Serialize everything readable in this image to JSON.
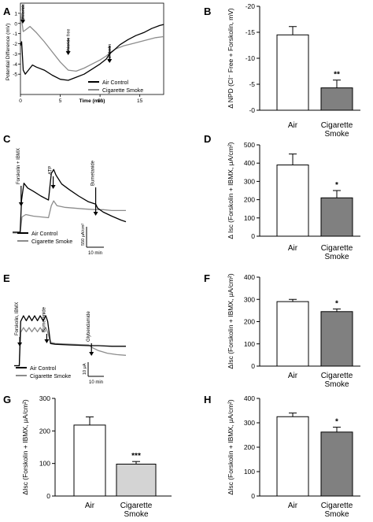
{
  "figure": {
    "label_fill": "#000000"
  },
  "chart_data": [
    {
      "panel": "A",
      "type": "line",
      "xlabel": "Time (min)",
      "ylabel": "Potential Difference (mV)",
      "xlim": [
        0,
        18
      ],
      "ylim": [
        -7,
        2
      ],
      "x_ticks": [
        0,
        5,
        10,
        15
      ],
      "y_ticks": [
        1,
        0,
        -1,
        -2,
        -3,
        -4,
        -5
      ],
      "annotations": [
        {
          "text": "Amiloride",
          "x": 0.3
        },
        {
          "text": "Chloride free",
          "x": 6.0
        },
        {
          "text": "Forskolin",
          "x": 11.2
        }
      ],
      "series": [
        {
          "name": "Air Control",
          "color": "#000000",
          "x": [
            0,
            0.15,
            0.35,
            0.6,
            1,
            1.5,
            2,
            3,
            4,
            5,
            6,
            7,
            8,
            9,
            10,
            10.8,
            11.2,
            11.8,
            12.5,
            13.5,
            14.5,
            15.5,
            16.5,
            17.5,
            18
          ],
          "y": [
            -2.2,
            -1.8,
            -4.6,
            -5.0,
            -4.6,
            -4.1,
            -4.3,
            -4.6,
            -5.1,
            -5.5,
            -5.6,
            -5.3,
            -5.0,
            -4.5,
            -4.0,
            -3.5,
            -3.0,
            -2.6,
            -2.1,
            -1.6,
            -1.2,
            -0.9,
            -0.5,
            -0.2,
            -0.1
          ]
        },
        {
          "name": "Cigarette Smoke",
          "color": "#8c8c8c",
          "x": [
            0,
            0.15,
            0.35,
            0.7,
            1.2,
            2,
            3,
            4,
            5,
            6,
            7,
            8,
            9,
            10,
            10.8,
            11.2,
            12,
            13,
            14,
            15,
            16,
            17,
            18
          ],
          "y": [
            1.2,
            0.4,
            -0.8,
            -0.6,
            -0.3,
            -0.9,
            -1.8,
            -2.8,
            -3.8,
            -4.6,
            -4.7,
            -4.4,
            -4.0,
            -3.6,
            -3.2,
            -2.9,
            -2.5,
            -2.2,
            -2.0,
            -1.8,
            -1.6,
            -1.4,
            -1.3
          ]
        }
      ]
    },
    {
      "panel": "B",
      "type": "bar",
      "ylabel": "Δ NPD (Cl⁻ Free + Forskolin, mV)",
      "ylim": [
        0,
        -20
      ],
      "y_ticks": [
        0,
        -5,
        -10,
        -15,
        -20
      ],
      "y_tick_labels": [
        "-0",
        "-5",
        "-10",
        "-15",
        "-20"
      ],
      "categories": [
        "Air",
        "Cigarette Smoke"
      ],
      "category_lines": [
        [
          "Air"
        ],
        [
          "Cigarette",
          "Smoke"
        ]
      ],
      "values": [
        -14.5,
        -4.3
      ],
      "errors": [
        1.6,
        1.5
      ],
      "colors": [
        "#ffffff",
        "#808080"
      ],
      "significance": [
        "",
        "**"
      ]
    },
    {
      "panel": "C",
      "type": "line",
      "annotations": [
        {
          "text": "Forskolin + IBMX",
          "x": 0.9
        },
        {
          "text": "ATP",
          "x": 4.3
        },
        {
          "text": "Bumetanide",
          "x": 8.8
        }
      ],
      "scale_bar": {
        "y_label": "550 μA/cm²",
        "x_label": "10 min"
      },
      "xlim": [
        0,
        12
      ],
      "ylim": [
        0,
        10
      ],
      "series": [
        {
          "name": "Air Control",
          "color": "#000000",
          "x": [
            0,
            0.8,
            0.95,
            1.2,
            1.6,
            2.2,
            3,
            3.8,
            4.1,
            4.35,
            4.6,
            5.2,
            6,
            7,
            8,
            8.8,
            9.0,
            9.6,
            10.5,
            11.5,
            12
          ],
          "y": [
            0.5,
            0.5,
            4.5,
            6.6,
            6.0,
            5.6,
            5.0,
            4.5,
            7.8,
            8.3,
            7.6,
            6.5,
            5.8,
            5.0,
            4.3,
            4.0,
            3.5,
            3.0,
            2.5,
            2.0,
            1.8
          ]
        },
        {
          "name": "Cigarette Smoke",
          "color": "#8c8c8c",
          "x": [
            0,
            0.8,
            1.0,
            1.4,
            2.2,
            3,
            3.8,
            4.1,
            4.35,
            4.7,
            5.5,
            6.5,
            7.5,
            8.8,
            9.6,
            10.5,
            11.5,
            12
          ],
          "y": [
            0.4,
            0.4,
            2.4,
            2.7,
            2.5,
            2.4,
            2.3,
            3.8,
            4.4,
            3.8,
            3.6,
            3.5,
            3.4,
            3.3,
            3.3,
            3.2,
            3.2,
            3.2
          ]
        }
      ]
    },
    {
      "panel": "D",
      "type": "bar",
      "ylabel": "Δ Isc (Forskolin + IBMX, μA/cm²)",
      "ylim": [
        0,
        500
      ],
      "y_ticks": [
        0,
        100,
        200,
        300,
        400,
        500
      ],
      "categories": [
        "Air",
        "Cigarette Smoke"
      ],
      "category_lines": [
        [
          "Air"
        ],
        [
          "Cigarette",
          "Smoke"
        ]
      ],
      "values": [
        390,
        210
      ],
      "errors": [
        60,
        40
      ],
      "colors": [
        "#ffffff",
        "#808080"
      ],
      "significance": [
        "",
        "*"
      ]
    },
    {
      "panel": "E",
      "type": "line",
      "annotations": [
        {
          "text": "Forskolin, IBMX",
          "x": 0.6
        },
        {
          "text": "Bumetanide",
          "x": 3.5
        },
        {
          "text": "Glybendamide",
          "x": 8.3
        }
      ],
      "scale_bar": {
        "y_label": "10 μA",
        "x_label": "10 min"
      },
      "xlim": [
        0,
        12
      ],
      "ylim": [
        0,
        10
      ],
      "series": [
        {
          "name": "Air Control",
          "color": "#000000",
          "x": [
            0,
            0.55,
            0.7,
            1.0,
            1.3,
            1.6,
            1.9,
            2.2,
            2.5,
            2.8,
            3.1,
            3.4,
            3.6,
            3.9,
            4.4,
            6,
            8,
            9,
            10.5,
            12
          ],
          "y": [
            0.4,
            0.4,
            6.8,
            7.6,
            6.9,
            7.6,
            6.9,
            7.6,
            6.9,
            7.6,
            6.9,
            7.6,
            6.8,
            3.6,
            3.5,
            3.4,
            3.3,
            3.3,
            3.2,
            3.2
          ]
        },
        {
          "name": "Cigarette Smoke",
          "color": "#8c8c8c",
          "x": [
            0,
            0.55,
            0.7,
            1.0,
            1.3,
            1.6,
            1.9,
            2.2,
            2.5,
            2.8,
            3.1,
            3.4,
            3.6,
            3.9,
            4.4,
            6,
            8,
            8.4,
            9,
            10,
            11,
            12
          ],
          "y": [
            0.4,
            0.4,
            5.2,
            5.9,
            5.3,
            5.9,
            5.3,
            5.9,
            5.3,
            5.9,
            5.3,
            5.9,
            5.2,
            3.8,
            3.6,
            3.5,
            3.4,
            3.0,
            2.6,
            2.2,
            2.0,
            1.9
          ]
        }
      ]
    },
    {
      "panel": "F",
      "type": "bar",
      "ylabel": "ΔIsc (Forskolin + IBMX, μA/cm²)",
      "ylim": [
        0,
        400
      ],
      "y_ticks": [
        0,
        100,
        200,
        300,
        400
      ],
      "categories": [
        "Air",
        "Cigarette Smoke"
      ],
      "category_lines": [
        [
          "Air"
        ],
        [
          "Cigarette",
          "Smoke"
        ]
      ],
      "values": [
        290,
        245
      ],
      "errors": [
        10,
        12
      ],
      "colors": [
        "#ffffff",
        "#808080"
      ],
      "significance": [
        "",
        "*"
      ]
    },
    {
      "panel": "G",
      "type": "bar",
      "ylabel": "ΔIsc (Forskolin + IBMX, μA/cm²)",
      "ylim": [
        0,
        300
      ],
      "y_ticks": [
        0,
        100,
        200,
        300
      ],
      "categories": [
        "Air",
        "Cigarette Smoke"
      ],
      "category_lines": [
        [
          "Air"
        ],
        [
          "Cigarette",
          "Smoke"
        ]
      ],
      "values": [
        218,
        98
      ],
      "errors": [
        25,
        8
      ],
      "colors": [
        "#ffffff",
        "#d4d4d4"
      ],
      "significance": [
        "",
        "***"
      ]
    },
    {
      "panel": "H",
      "type": "bar",
      "ylabel": "ΔIsc (Forskolin + IBMX, μA/cm²)",
      "ylim": [
        0,
        400
      ],
      "y_ticks": [
        0,
        100,
        200,
        300,
        400
      ],
      "categories": [
        "Air",
        "Cigarette Smoke"
      ],
      "category_lines": [
        [
          "Air"
        ],
        [
          "Cigarette",
          "Smoke"
        ]
      ],
      "values": [
        325,
        262
      ],
      "errors": [
        15,
        20
      ],
      "colors": [
        "#ffffff",
        "#808080"
      ],
      "significance": [
        "",
        "*"
      ]
    }
  ]
}
